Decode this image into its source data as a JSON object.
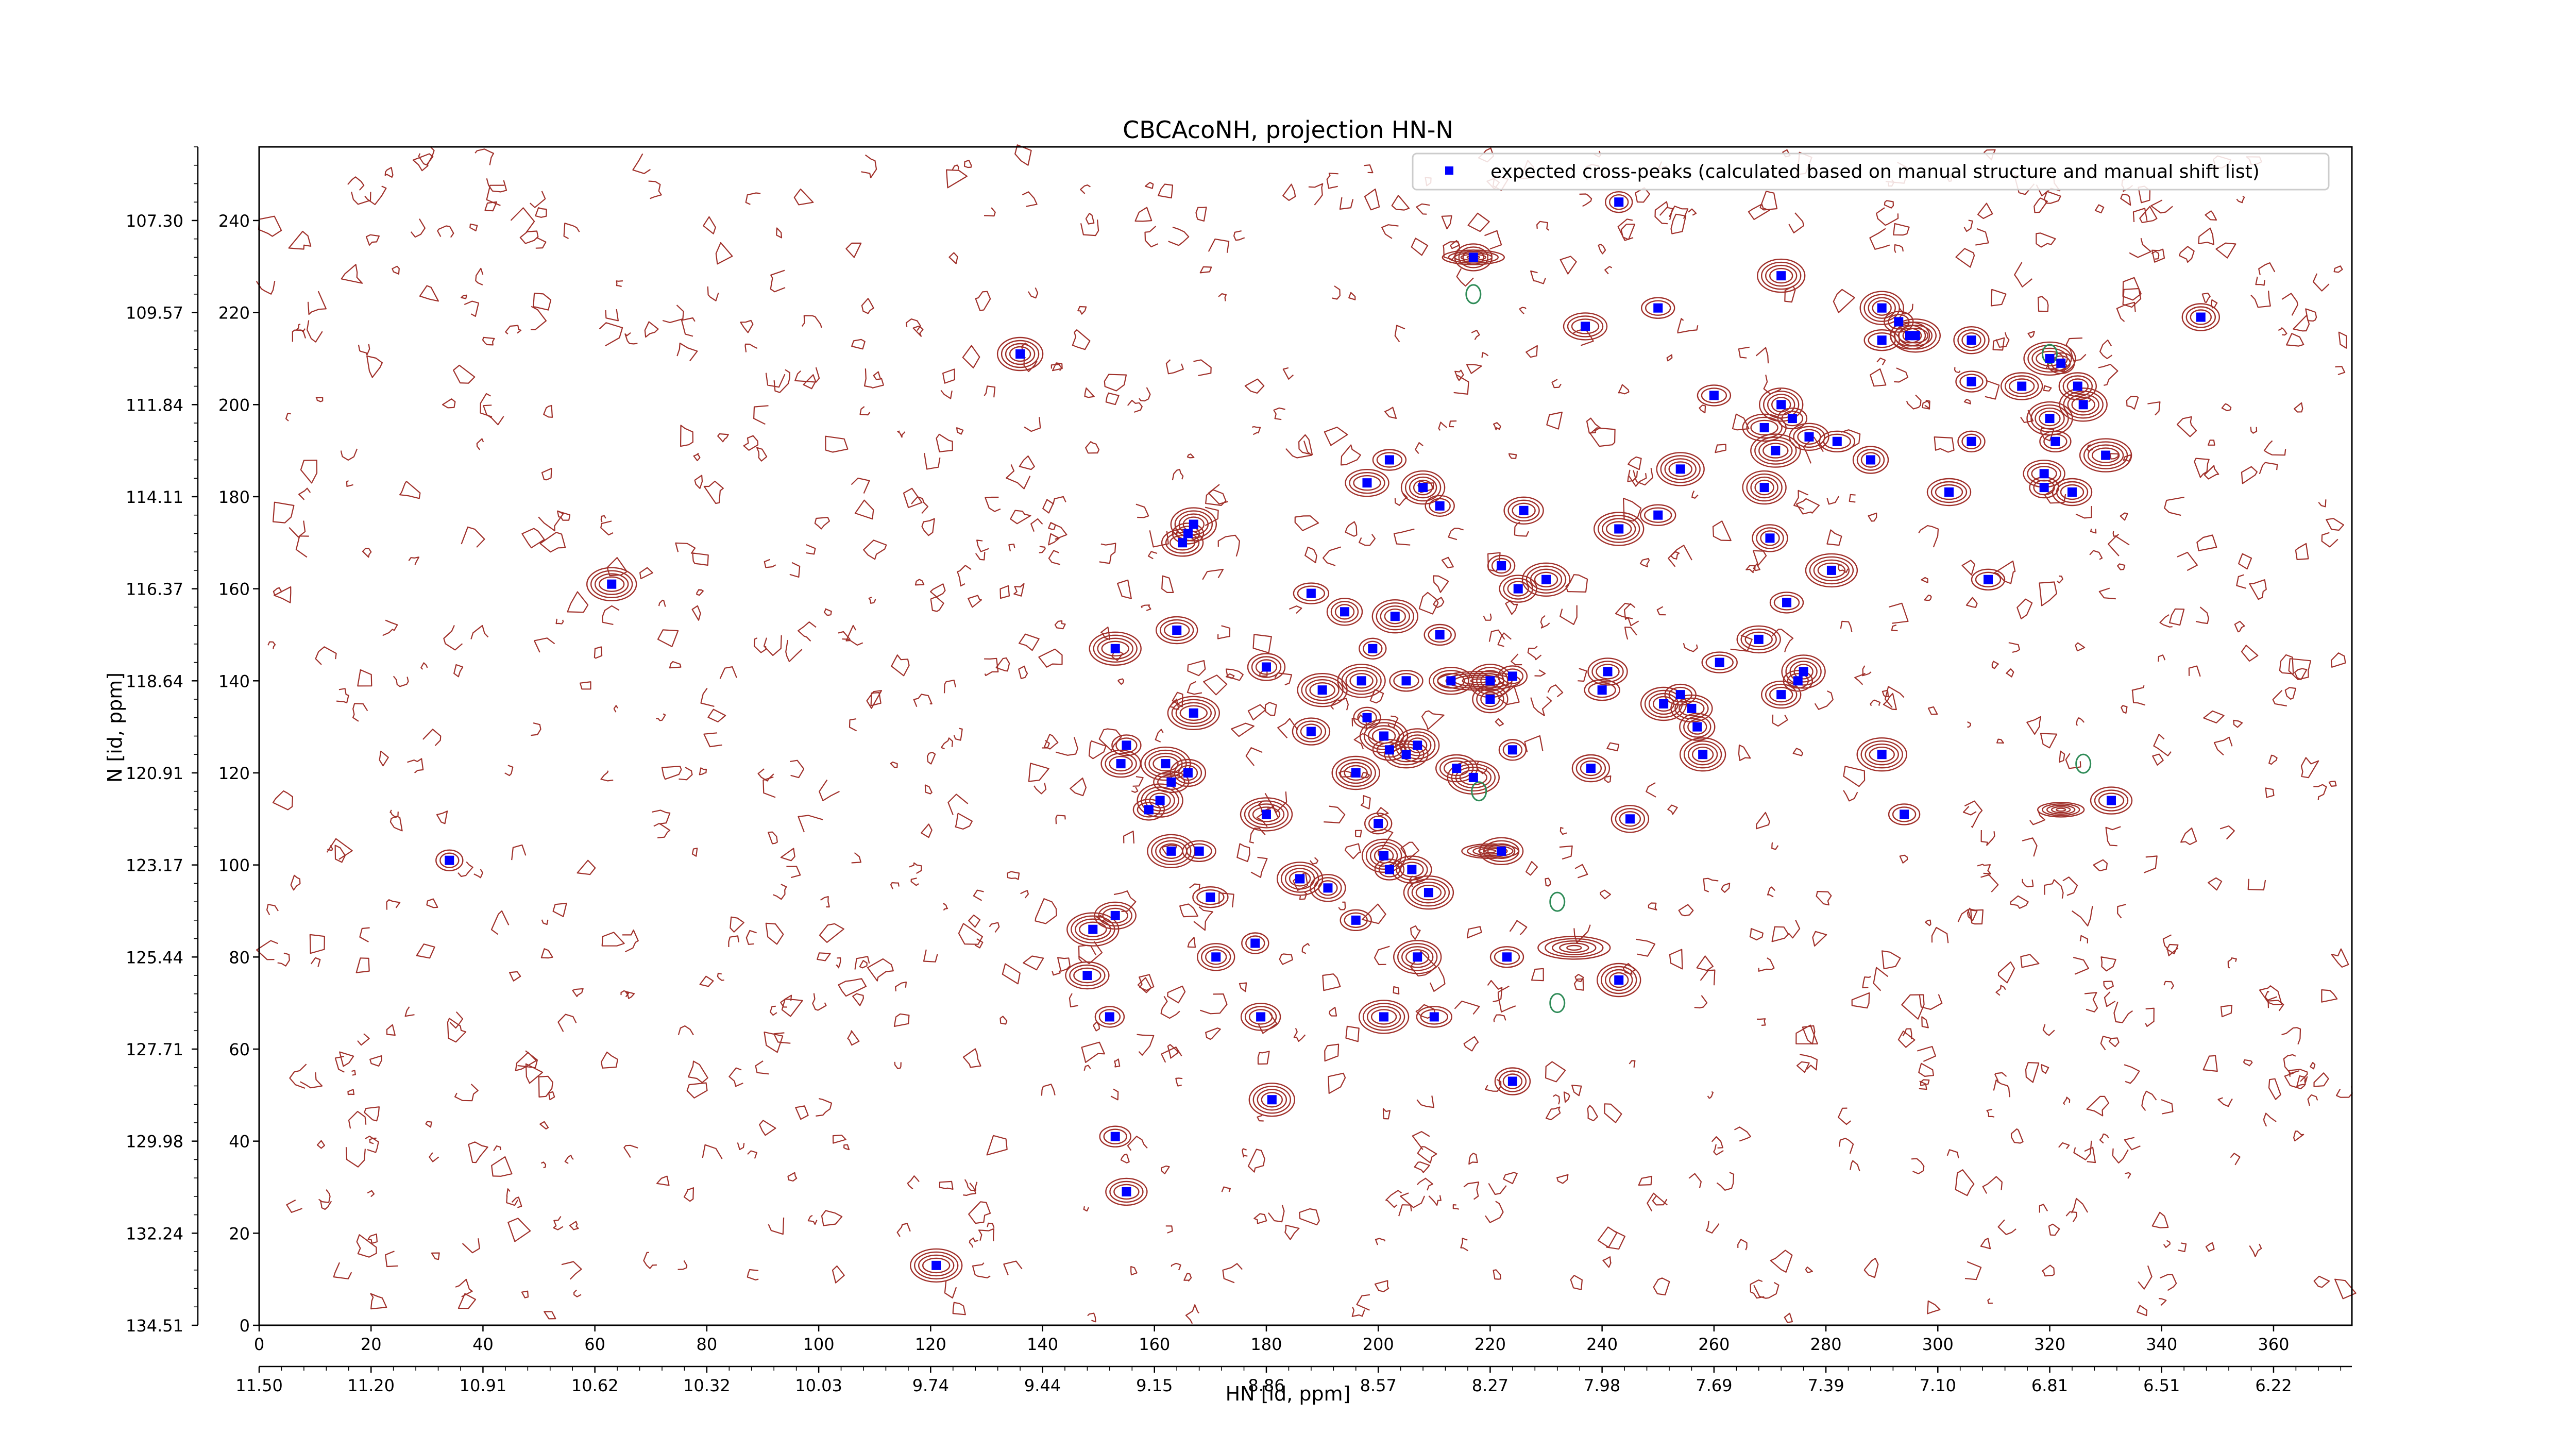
{
  "chart_data": {
    "type": "scatter",
    "title": "CBCAcoNH, projection HN-N",
    "xlabel": "HN [id, ppm]",
    "ylabel": "N [id, ppm]",
    "xlim": [
      0,
      374
    ],
    "ylim": [
      0,
      256
    ],
    "x_ticks_index": [
      "0",
      "20",
      "40",
      "60",
      "80",
      "100",
      "120",
      "140",
      "160",
      "180",
      "200",
      "220",
      "240",
      "260",
      "280",
      "300",
      "320",
      "340",
      "360"
    ],
    "x_ticks_ppm": [
      "11.50",
      "11.20",
      "10.91",
      "10.62",
      "10.32",
      "10.03",
      "9.74",
      "9.44",
      "9.15",
      "8.86",
      "8.57",
      "8.27",
      "7.98",
      "7.69",
      "7.39",
      "7.10",
      "6.81",
      "6.51",
      "6.22"
    ],
    "y_ticks_index": [
      "0",
      "20",
      "40",
      "60",
      "80",
      "100",
      "120",
      "140",
      "160",
      "180",
      "200",
      "220",
      "240"
    ],
    "y_ticks_ppm": [
      "134.51",
      "132.24",
      "129.98",
      "127.71",
      "125.44",
      "123.17",
      "120.91",
      "118.64",
      "116.37",
      "114.11",
      "111.84",
      "109.57",
      "107.30"
    ],
    "legend": {
      "position": "top-right",
      "label": "expected cross-peaks (calculated based on manual structure and manual shift list)"
    },
    "colors": {
      "peaks": "#0000ff",
      "positive_contours": "#a0302a",
      "negative_contours": "#2e8b57"
    },
    "series": [
      {
        "name": "expected cross-peaks (calculated based on manual structure and manual shift list)",
        "points": [
          [
            243,
            244
          ],
          [
            217,
            232
          ],
          [
            272,
            228
          ],
          [
            250,
            221
          ],
          [
            237,
            217
          ],
          [
            290,
            221
          ],
          [
            293,
            218
          ],
          [
            295,
            215
          ],
          [
            296,
            215
          ],
          [
            290,
            214
          ],
          [
            306,
            214
          ],
          [
            136,
            211
          ],
          [
            306,
            205
          ],
          [
            315,
            204
          ],
          [
            320,
            210
          ],
          [
            322,
            209
          ],
          [
            325,
            204
          ],
          [
            326,
            200
          ],
          [
            260,
            202
          ],
          [
            269,
            195
          ],
          [
            272,
            200
          ],
          [
            274,
            197
          ],
          [
            277,
            193
          ],
          [
            271,
            190
          ],
          [
            282,
            192
          ],
          [
            288,
            188
          ],
          [
            320,
            197
          ],
          [
            321,
            192
          ],
          [
            319,
            185
          ],
          [
            330,
            189
          ],
          [
            306,
            192
          ],
          [
            347,
            219
          ],
          [
            254,
            186
          ],
          [
            202,
            188
          ],
          [
            198,
            183
          ],
          [
            208,
            182
          ],
          [
            211,
            178
          ],
          [
            226,
            177
          ],
          [
            243,
            173
          ],
          [
            250,
            176
          ],
          [
            270,
            171
          ],
          [
            167,
            174
          ],
          [
            166,
            172
          ],
          [
            165,
            170
          ],
          [
            281,
            164
          ],
          [
            222,
            165
          ],
          [
            225,
            160
          ],
          [
            230,
            162
          ],
          [
            309,
            162
          ],
          [
            302,
            181
          ],
          [
            269,
            182
          ],
          [
            319,
            182
          ],
          [
            324,
            181
          ],
          [
            63,
            161
          ],
          [
            188,
            159
          ],
          [
            194,
            155
          ],
          [
            203,
            154
          ],
          [
            211,
            150
          ],
          [
            164,
            151
          ],
          [
            153,
            147
          ],
          [
            199,
            147
          ],
          [
            180,
            143
          ],
          [
            197,
            140
          ],
          [
            205,
            140
          ],
          [
            213,
            140
          ],
          [
            220,
            140
          ],
          [
            224,
            141
          ],
          [
            241,
            142
          ],
          [
            190,
            138
          ],
          [
            240,
            138
          ],
          [
            220,
            136
          ],
          [
            251,
            135
          ],
          [
            254,
            137
          ],
          [
            256,
            134
          ],
          [
            167,
            133
          ],
          [
            198,
            132
          ],
          [
            188,
            129
          ],
          [
            201,
            128
          ],
          [
            202,
            125
          ],
          [
            205,
            124
          ],
          [
            207,
            126
          ],
          [
            155,
            126
          ],
          [
            154,
            122
          ],
          [
            162,
            122
          ],
          [
            163,
            118
          ],
          [
            166,
            120
          ],
          [
            161,
            114
          ],
          [
            159,
            112
          ],
          [
            214,
            121
          ],
          [
            217,
            119
          ],
          [
            224,
            125
          ],
          [
            238,
            121
          ],
          [
            196,
            120
          ],
          [
            273,
            157
          ],
          [
            268,
            149
          ],
          [
            276,
            142
          ],
          [
            275,
            140
          ],
          [
            272,
            137
          ],
          [
            290,
            124
          ],
          [
            261,
            144
          ],
          [
            257,
            130
          ],
          [
            258,
            124
          ],
          [
            294,
            111
          ],
          [
            331,
            114
          ],
          [
            180,
            111
          ],
          [
            200,
            109
          ],
          [
            245,
            110
          ],
          [
            163,
            103
          ],
          [
            168,
            103
          ],
          [
            222,
            103
          ],
          [
            201,
            102
          ],
          [
            202,
            99
          ],
          [
            206,
            99
          ],
          [
            209,
            94
          ],
          [
            170,
            93
          ],
          [
            191,
            95
          ],
          [
            186,
            97
          ],
          [
            196,
            88
          ],
          [
            153,
            89
          ],
          [
            149,
            86
          ],
          [
            178,
            83
          ],
          [
            171,
            80
          ],
          [
            207,
            80
          ],
          [
            223,
            80
          ],
          [
            148,
            76
          ],
          [
            243,
            75
          ],
          [
            152,
            67
          ],
          [
            179,
            67
          ],
          [
            201,
            67
          ],
          [
            210,
            67
          ],
          [
            224,
            53
          ],
          [
            181,
            49
          ],
          [
            153,
            41
          ],
          [
            155,
            29
          ],
          [
            121,
            13
          ],
          [
            34,
            101
          ],
          [
            186,
            97
          ]
        ]
      }
    ]
  }
}
